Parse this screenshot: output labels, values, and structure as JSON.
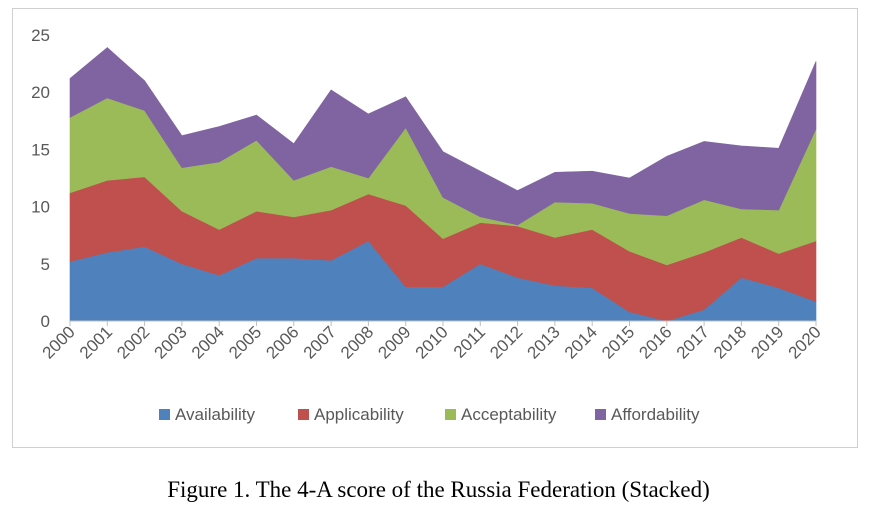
{
  "caption": "Figure 1. The 4-A score of the Russia Federation (Stacked)",
  "chart_data": {
    "type": "area",
    "stacked": true,
    "title": "",
    "xlabel": "",
    "ylabel": "",
    "ylim": [
      0,
      25
    ],
    "yticks": [
      0,
      5,
      10,
      15,
      20,
      25
    ],
    "grid": false,
    "legend_position": "bottom",
    "categories": [
      "2000",
      "2001",
      "2002",
      "2003",
      "2004",
      "2005",
      "2006",
      "2007",
      "2008",
      "2009",
      "2010",
      "2011",
      "2012",
      "2013",
      "2014",
      "2015",
      "2016",
      "2017",
      "2018",
      "2019",
      "2020"
    ],
    "series": [
      {
        "name": "Availability",
        "color": "#4f81bd",
        "values": [
          5.2,
          6.0,
          6.5,
          5.0,
          4.0,
          5.5,
          5.5,
          5.3,
          7.0,
          3.0,
          3.0,
          5.0,
          3.8,
          3.1,
          2.9,
          0.8,
          0.0,
          1.0,
          3.8,
          2.9,
          1.7
        ]
      },
      {
        "name": "Applicability",
        "color": "#c0504d",
        "values": [
          6.0,
          6.3,
          6.1,
          4.6,
          4.0,
          4.1,
          3.6,
          4.4,
          4.1,
          7.1,
          4.2,
          3.6,
          4.5,
          4.2,
          5.1,
          5.3,
          4.9,
          5.0,
          3.5,
          3.0,
          5.3
        ]
      },
      {
        "name": "Acceptability",
        "color": "#9bbb59",
        "values": [
          6.6,
          7.2,
          5.8,
          3.8,
          5.9,
          6.2,
          3.2,
          3.8,
          1.4,
          6.8,
          3.6,
          0.5,
          0.1,
          3.1,
          2.3,
          3.3,
          4.3,
          4.6,
          2.5,
          3.8,
          9.8
        ]
      },
      {
        "name": "Affordability",
        "color": "#8064a2",
        "values": [
          3.4,
          4.4,
          2.6,
          2.8,
          3.1,
          2.2,
          3.2,
          6.7,
          5.6,
          2.7,
          4.0,
          4.0,
          3.0,
          2.6,
          2.8,
          3.1,
          5.2,
          5.1,
          5.5,
          5.4,
          5.9
        ]
      }
    ]
  }
}
